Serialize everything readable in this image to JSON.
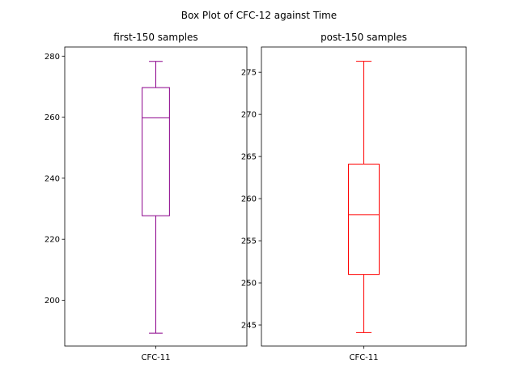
{
  "figure": {
    "title": "Box Plot of CFC-12 against Time"
  },
  "chart_data": [
    {
      "type": "box",
      "title": "first-150 samples",
      "color": "#8b008b",
      "categories": [
        "CFC-11"
      ],
      "box": {
        "whisker_low": 189.2,
        "q1": 227.7,
        "median": 259.8,
        "q3": 269.7,
        "whisker_high": 278.3
      },
      "ylim": [
        185,
        283
      ],
      "yticks": [
        200,
        220,
        240,
        260,
        280
      ],
      "grid": false
    },
    {
      "type": "box",
      "title": "post-150 samples",
      "color": "#ff0000",
      "categories": [
        "CFC-11"
      ],
      "box": {
        "whisker_low": 244.1,
        "q1": 251.0,
        "median": 258.1,
        "q3": 264.1,
        "whisker_high": 276.3
      },
      "ylim": [
        242.5,
        278
      ],
      "yticks": [
        245,
        250,
        255,
        260,
        265,
        270,
        275
      ],
      "grid": false
    }
  ]
}
